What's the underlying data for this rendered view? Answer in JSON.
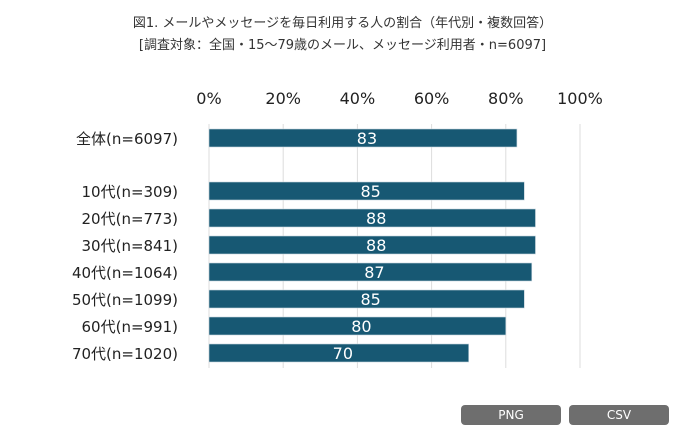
{
  "chart_data": {
    "type": "bar",
    "orientation": "horizontal",
    "title": "図1. メールやメッセージを毎日利用する人の割合（年代別・複数回答）",
    "subtitle": "[調査対象：全国・15〜79歳のメール、メッセージ利用者・n=6097]",
    "categories": [
      "全体(n=6097)",
      "",
      "10代(n=309)",
      "20代(n=773)",
      "30代(n=841)",
      "40代(n=1064)",
      "50代(n=1099)",
      "60代(n=991)",
      "70代(n=1020)"
    ],
    "values": [
      83,
      null,
      85,
      88,
      88,
      87,
      85,
      80,
      70
    ],
    "xlim": [
      0,
      100
    ],
    "xticks": [
      "0%",
      "20%",
      "40%",
      "60%",
      "80%",
      "100%"
    ],
    "xaxis_position": "top",
    "grid": true,
    "bar_color": "#175873",
    "label_color": "#ffffff"
  },
  "buttons": {
    "png": "PNG",
    "csv": "CSV"
  }
}
